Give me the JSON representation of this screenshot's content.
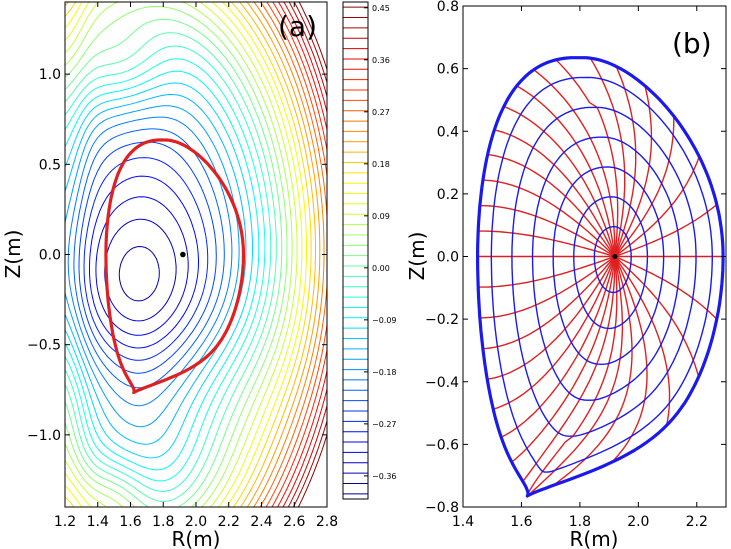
{
  "chart_data": [
    {
      "type": "contour",
      "panel_label": "(a)",
      "title": "",
      "xlabel": "R(m)",
      "ylabel": "Z(m)",
      "xlim": [
        1.2,
        2.8
      ],
      "ylim": [
        -1.4,
        1.4
      ],
      "xticks": [
        "1.2",
        "1.4",
        "1.6",
        "1.8",
        "2.0",
        "2.2",
        "2.4",
        "2.6",
        "2.8"
      ],
      "xtick_values": [
        1.2,
        1.4,
        1.6,
        1.8,
        2.0,
        2.2,
        2.4,
        2.6,
        2.8
      ],
      "yticks": [
        "−1.0",
        "−0.5",
        "0.0",
        "0.5",
        "1.0"
      ],
      "ytick_values": [
        -1.0,
        -0.5,
        0.0,
        0.5,
        1.0
      ],
      "magnetic_axis": {
        "R": 1.92,
        "Z": 0.0
      },
      "separatrix": {
        "color": "#e02020",
        "R": [
          1.92,
          2.05,
          2.17,
          2.25,
          2.29,
          2.29,
          2.28,
          2.25,
          2.19,
          2.11,
          1.99,
          1.86,
          1.73,
          1.64,
          1.62,
          1.56,
          1.49,
          1.45,
          1.44,
          1.45,
          1.5,
          1.58,
          1.68,
          1.73,
          1.8,
          1.88,
          1.92
        ],
        "Z": [
          -0.76,
          -0.67,
          -0.55,
          -0.4,
          -0.22,
          0.0,
          0.15,
          0.3,
          0.44,
          0.55,
          0.62,
          0.64,
          0.63,
          0.55,
          -0.76,
          -0.73,
          -0.6,
          -0.4,
          -0.18,
          0.05,
          0.28,
          0.45,
          0.58,
          0.635,
          0.64,
          0.63,
          0.62
        ]
      },
      "colorbar": {
        "ticks": [
          "0.45",
          "0.36",
          "0.27",
          "0.18",
          "0.09",
          "0.00",
          "−0.09",
          "−0.18",
          "−0.27",
          "−0.36"
        ],
        "tick_values": [
          0.45,
          0.36,
          0.27,
          0.18,
          0.09,
          0.0,
          -0.09,
          -0.18,
          -0.27,
          -0.36
        ],
        "range": [
          -0.4,
          0.46
        ],
        "colormap": [
          "#00007f",
          "#0000ff",
          "#007fff",
          "#00ffff",
          "#7fff7f",
          "#ffff00",
          "#ff7f00",
          "#ff0000",
          "#7f0000"
        ]
      }
    },
    {
      "type": "line",
      "panel_label": "(b)",
      "title": "",
      "xlabel": "R(m)",
      "ylabel": "Z(m)",
      "xlim": [
        1.4,
        2.3
      ],
      "ylim": [
        -0.8,
        0.8
      ],
      "xticks": [
        "1.4",
        "1.6",
        "1.8",
        "2.0",
        "2.2"
      ],
      "xtick_values": [
        1.4,
        1.6,
        1.8,
        2.0,
        2.2
      ],
      "yticks": [
        "−0.8",
        "−0.6",
        "−0.4",
        "−0.2",
        "0.0",
        "0.2",
        "0.4",
        "0.6",
        "0.8"
      ],
      "ytick_values": [
        -0.8,
        -0.6,
        -0.4,
        -0.2,
        0.0,
        0.2,
        0.4,
        0.6,
        0.8
      ],
      "magnetic_axis": {
        "R": 1.92,
        "Z": 0.0
      },
      "boundary": {
        "color": "#1a1aee",
        "R": [
          1.92,
          2.04,
          2.15,
          2.24,
          2.285,
          2.29,
          2.28,
          2.24,
          2.18,
          2.1,
          2.0,
          1.9,
          1.8,
          1.72,
          1.63,
          1.62,
          1.6,
          1.55,
          1.5,
          1.465,
          1.45,
          1.455,
          1.48,
          1.53,
          1.6,
          1.68,
          1.72,
          1.8,
          1.92
        ],
        "Z": [
          -0.65,
          -0.58,
          -0.47,
          -0.33,
          -0.17,
          0.0,
          0.13,
          0.27,
          0.39,
          0.49,
          0.565,
          0.61,
          0.63,
          0.635,
          -0.76,
          -0.765,
          -0.76,
          -0.72,
          -0.58,
          -0.4,
          -0.18,
          0.05,
          0.26,
          0.44,
          0.57,
          0.625,
          0.635,
          0.63,
          0.62
        ]
      },
      "flux_surface_levels": [
        0.15,
        0.3,
        0.45,
        0.6,
        0.75,
        0.9,
        1.0
      ],
      "radial_line_count": 32,
      "surface_color": "#1a1aee",
      "radial_color": "#e02020"
    }
  ]
}
